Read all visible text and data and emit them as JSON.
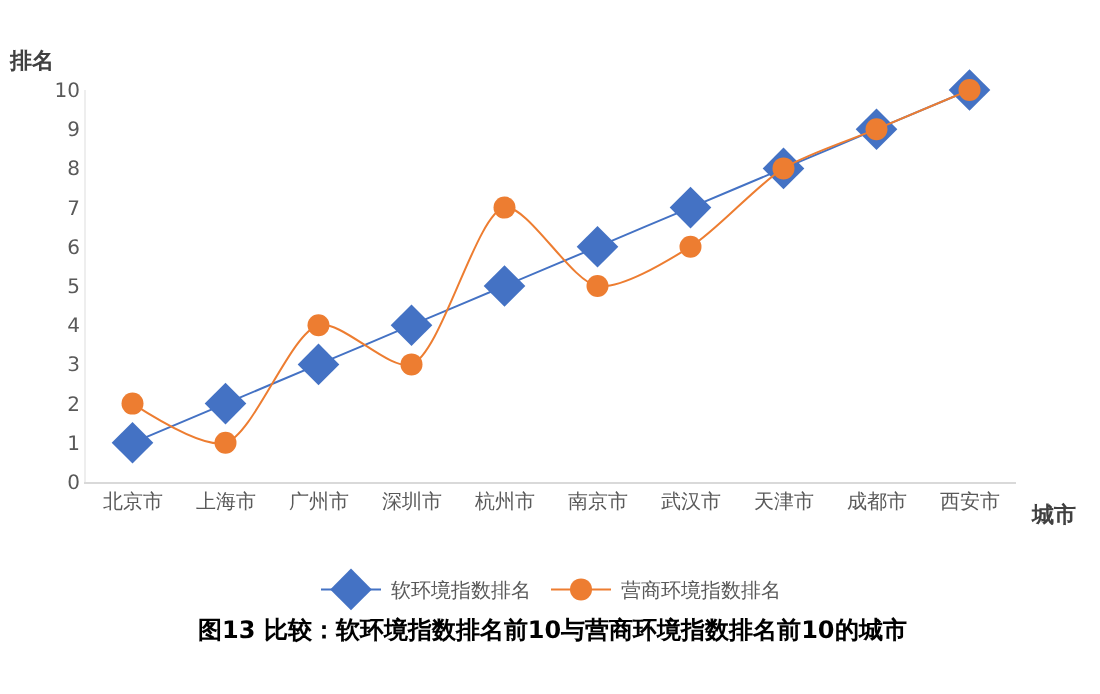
{
  "chart_data": {
    "type": "line",
    "title": "图13 比较：软环境指数排名前10与营商环境指数排名前10的城市",
    "xlabel": "城市",
    "ylabel": "排名",
    "categories": [
      "北京市",
      "上海市",
      "广州市",
      "深圳市",
      "杭州市",
      "南京市",
      "武汉市",
      "天津市",
      "成都市",
      "西安市"
    ],
    "series": [
      {
        "name": "软环境指数排名",
        "color": "#4472c4",
        "marker": "diamond",
        "values": [
          1,
          2,
          3,
          4,
          5,
          6,
          7,
          8,
          9,
          10
        ]
      },
      {
        "name": "营商环境指数排名",
        "color": "#ed7d31",
        "marker": "circle",
        "values": [
          2,
          1,
          4,
          3,
          7,
          5,
          6,
          8,
          9,
          10
        ]
      }
    ],
    "ylim": [
      0,
      10
    ],
    "yticks": [
      0,
      1,
      2,
      3,
      4,
      5,
      6,
      7,
      8,
      9,
      10
    ],
    "legend": "bottom",
    "line_style": "solid"
  }
}
